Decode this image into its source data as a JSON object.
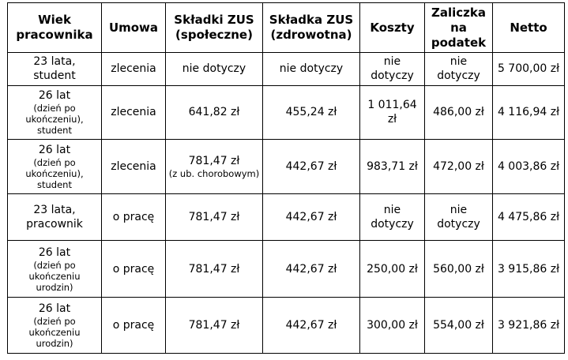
{
  "headers": {
    "h1": "Wiek pracownika",
    "h2": "Umowa",
    "h3": "Składki ZUS (społeczne)",
    "h4": "Składka ZUS (zdrowotna)",
    "h5": "Koszty",
    "h6": "Zaliczka na podatek",
    "h7": "Netto"
  },
  "rows": [
    {
      "age_main": "23 lata,",
      "age_sub": "",
      "age_tail": "student",
      "umowa": "zlecenia",
      "spoleczne": "nie dotyczy",
      "spoleczne_note": "",
      "zdrowotna": "nie dotyczy",
      "koszty": "nie dotyczy",
      "zaliczka": "nie dotyczy",
      "netto": "5 700,00 zł"
    },
    {
      "age_main": "26 lat",
      "age_sub": "(dzień po ukończeniu),",
      "age_tail": "student",
      "umowa": "zlecenia",
      "spoleczne": "641,82 zł",
      "spoleczne_note": "",
      "zdrowotna": "455,24 zł",
      "koszty": "1 011,64 zł",
      "zaliczka": "486,00 zł",
      "netto": "4 116,94 zł"
    },
    {
      "age_main": "26 lat",
      "age_sub": "(dzień po ukończeniu),",
      "age_tail": "student",
      "umowa": "zlecenia",
      "spoleczne": "781,47 zł",
      "spoleczne_note": "(z ub. chorobowym)",
      "zdrowotna": "442,67 zł",
      "koszty": "983,71 zł",
      "zaliczka": "472,00 zł",
      "netto": "4 003,86 zł"
    },
    {
      "age_main": "23 lata,",
      "age_sub": "",
      "age_tail": "pracownik",
      "umowa": "o pracę",
      "spoleczne": "781,47 zł",
      "spoleczne_note": "",
      "zdrowotna": "442,67 zł",
      "koszty": "nie dotyczy",
      "zaliczka": "nie dotyczy",
      "netto": "4 475,86 zł"
    },
    {
      "age_main": "26 lat",
      "age_sub": "(dzień po ukończeniu urodzin)",
      "age_tail": "",
      "umowa": "o pracę",
      "spoleczne": "781,47 zł",
      "spoleczne_note": "",
      "zdrowotna": "442,67 zł",
      "koszty": "250,00 zł",
      "zaliczka": "560,00 zł",
      "netto": "3 915,86 zł"
    },
    {
      "age_main": "26 lat",
      "age_sub": "(dzień po ukończeniu urodzin)",
      "age_tail": "",
      "umowa": "o pracę",
      "spoleczne": "781,47 zł",
      "spoleczne_note": "",
      "zdrowotna": "442,67 zł",
      "koszty": "300,00 zł",
      "zaliczka": "554,00 zł",
      "netto": "3 921,86 zł"
    }
  ]
}
